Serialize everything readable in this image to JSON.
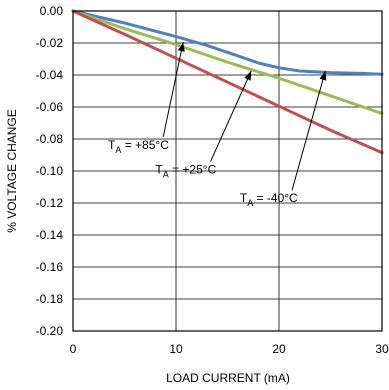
{
  "chart_data": {
    "type": "line",
    "title": "",
    "xlabel": "LOAD CURRENT (mA)",
    "ylabel": "% VOLTAGE CHANGE",
    "xlim": [
      0,
      30
    ],
    "ylim": [
      -0.2,
      0.0
    ],
    "x_ticks": [
      0,
      10,
      20,
      30
    ],
    "x_tick_labels": [
      "0",
      "10",
      "20",
      "30"
    ],
    "y_ticks": [
      0.0,
      -0.02,
      -0.04,
      -0.06,
      -0.08,
      -0.1,
      -0.12,
      -0.14,
      -0.16,
      -0.18,
      -0.2
    ],
    "y_tick_labels": [
      "0.00",
      "-0.02",
      "-0.04",
      "-0.06",
      "-0.08",
      "-0.10",
      "-0.12",
      "-0.14",
      "-0.16",
      "-0.18",
      "-0.20"
    ],
    "grid": true,
    "series": [
      {
        "color": "#4f81bd",
        "x": [
          0,
          5,
          10,
          13,
          16,
          18,
          20,
          22,
          25,
          28,
          30
        ],
        "y": [
          0.0,
          -0.0075,
          -0.016,
          -0.0215,
          -0.028,
          -0.0325,
          -0.0355,
          -0.0375,
          -0.0385,
          -0.039,
          -0.0395
        ]
      },
      {
        "color": "#9bbb59",
        "x": [
          0,
          5,
          10,
          15,
          20,
          25,
          30
        ],
        "y": [
          0.0,
          -0.011,
          -0.021,
          -0.032,
          -0.042,
          -0.053,
          -0.064
        ]
      },
      {
        "color": "#c0504d",
        "x": [
          0,
          5,
          10,
          15,
          20,
          25,
          30
        ],
        "y": [
          0.0,
          -0.0145,
          -0.0295,
          -0.0445,
          -0.0595,
          -0.0745,
          -0.0885
        ]
      }
    ],
    "annotations": [
      {
        "main": "T",
        "sub": "A",
        "value": " = +85°C",
        "x": 3.4,
        "y": -0.0862,
        "point_x": 10.7,
        "point_y": -0.0195
      },
      {
        "main": "T",
        "sub": "A",
        "value": " = +25°C",
        "x": 8.0,
        "y": -0.1015,
        "point_x": 17.3,
        "point_y": -0.0375
      },
      {
        "main": "T",
        "sub": "A",
        "value": " = -40°C",
        "x": 16.2,
        "y": -0.1195,
        "point_x": 24.5,
        "point_y": -0.0375
      }
    ]
  }
}
